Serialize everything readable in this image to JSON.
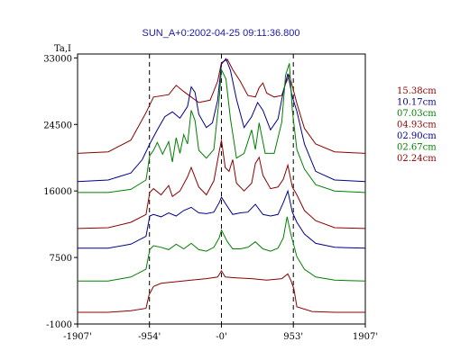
{
  "chart_data": {
    "type": "line",
    "title": "SUN_A+0:2002-04-25 09:11:36.800",
    "ylabel": "Ta,I",
    "xlabel": "",
    "x_ticks": [
      "-1907'",
      "-954'",
      "-0'",
      "953'",
      "1907'"
    ],
    "x_tick_values": [
      -1907,
      -954,
      0,
      953,
      1907
    ],
    "y_ticks": [
      "33000",
      "24500",
      "16000",
      "7500",
      "-1000"
    ],
    "y_tick_values": [
      33000,
      24500,
      16000,
      7500,
      -1000
    ],
    "xlim": [
      -1907,
      1907
    ],
    "ylim": [
      -1000,
      33500
    ],
    "reference_lines_x": [
      -954,
      0,
      953
    ],
    "legend_placement": "right",
    "series": [
      {
        "name": "15.38cm",
        "color": "#8b0000",
        "points": [
          [
            -1907,
            20800
          ],
          [
            -1500,
            21000
          ],
          [
            -1200,
            22500
          ],
          [
            -1000,
            26000
          ],
          [
            -900,
            28000
          ],
          [
            -700,
            28300
          ],
          [
            -600,
            29500
          ],
          [
            -500,
            28700
          ],
          [
            -400,
            28000
          ],
          [
            -300,
            27300
          ],
          [
            -150,
            27600
          ],
          [
            -50,
            30000
          ],
          [
            0,
            32400
          ],
          [
            80,
            32800
          ],
          [
            150,
            31500
          ],
          [
            250,
            30000
          ],
          [
            350,
            28200
          ],
          [
            450,
            28000
          ],
          [
            500,
            29200
          ],
          [
            550,
            29800
          ],
          [
            600,
            28500
          ],
          [
            700,
            28000
          ],
          [
            800,
            28200
          ],
          [
            850,
            29700
          ],
          [
            900,
            30800
          ],
          [
            950,
            29000
          ],
          [
            1000,
            27200
          ],
          [
            1100,
            24000
          ],
          [
            1250,
            22000
          ],
          [
            1500,
            21000
          ],
          [
            1907,
            20800
          ]
        ]
      },
      {
        "name": "10.17cm",
        "color": "#00008b",
        "points": [
          [
            -1907,
            17200
          ],
          [
            -1500,
            17400
          ],
          [
            -1200,
            18300
          ],
          [
            -1050,
            20000
          ],
          [
            -950,
            22000
          ],
          [
            -850,
            23800
          ],
          [
            -750,
            25500
          ],
          [
            -650,
            26100
          ],
          [
            -550,
            25300
          ],
          [
            -450,
            26800
          ],
          [
            -400,
            29300
          ],
          [
            -350,
            28600
          ],
          [
            -300,
            25800
          ],
          [
            -200,
            24100
          ],
          [
            -120,
            24700
          ],
          [
            -50,
            27600
          ],
          [
            0,
            32200
          ],
          [
            60,
            32900
          ],
          [
            120,
            31400
          ],
          [
            200,
            27700
          ],
          [
            300,
            24100
          ],
          [
            400,
            25500
          ],
          [
            480,
            27300
          ],
          [
            550,
            26300
          ],
          [
            650,
            23800
          ],
          [
            750,
            25200
          ],
          [
            820,
            28700
          ],
          [
            880,
            31000
          ],
          [
            940,
            28000
          ],
          [
            1000,
            26200
          ],
          [
            1100,
            22000
          ],
          [
            1250,
            18500
          ],
          [
            1500,
            17400
          ],
          [
            1907,
            17200
          ]
        ]
      },
      {
        "name": "07.03cm",
        "color": "#008000",
        "points": [
          [
            -1907,
            15800
          ],
          [
            -1500,
            15800
          ],
          [
            -1200,
            16200
          ],
          [
            -1000,
            17400
          ],
          [
            -950,
            20500
          ],
          [
            -900,
            21200
          ],
          [
            -850,
            22200
          ],
          [
            -780,
            20700
          ],
          [
            -700,
            22300
          ],
          [
            -650,
            19700
          ],
          [
            -600,
            22800
          ],
          [
            -550,
            20800
          ],
          [
            -500,
            23200
          ],
          [
            -450,
            22000
          ],
          [
            -400,
            26300
          ],
          [
            -350,
            25000
          ],
          [
            -300,
            21200
          ],
          [
            -200,
            20200
          ],
          [
            -100,
            21300
          ],
          [
            -30,
            27800
          ],
          [
            0,
            31500
          ],
          [
            60,
            30300
          ],
          [
            120,
            25200
          ],
          [
            200,
            20200
          ],
          [
            300,
            20800
          ],
          [
            400,
            23800
          ],
          [
            450,
            21300
          ],
          [
            500,
            24700
          ],
          [
            580,
            20800
          ],
          [
            700,
            20800
          ],
          [
            800,
            24800
          ],
          [
            850,
            30800
          ],
          [
            900,
            32300
          ],
          [
            940,
            26300
          ],
          [
            1000,
            21300
          ],
          [
            1100,
            18800
          ],
          [
            1250,
            16800
          ],
          [
            1500,
            16000
          ],
          [
            1907,
            15800
          ]
        ]
      },
      {
        "name": "04.93cm",
        "color": "#8b0000",
        "points": [
          [
            -1907,
            11200
          ],
          [
            -1500,
            11300
          ],
          [
            -1200,
            12000
          ],
          [
            -1000,
            13000
          ],
          [
            -950,
            15800
          ],
          [
            -900,
            16300
          ],
          [
            -800,
            15500
          ],
          [
            -700,
            16700
          ],
          [
            -650,
            15300
          ],
          [
            -550,
            16000
          ],
          [
            -450,
            17800
          ],
          [
            -400,
            19000
          ],
          [
            -300,
            16500
          ],
          [
            -200,
            15500
          ],
          [
            -100,
            17300
          ],
          [
            -30,
            21000
          ],
          [
            0,
            22500
          ],
          [
            50,
            19000
          ],
          [
            100,
            18500
          ],
          [
            150,
            20000
          ],
          [
            200,
            17000
          ],
          [
            300,
            16000
          ],
          [
            400,
            17000
          ],
          [
            450,
            19500
          ],
          [
            500,
            20300
          ],
          [
            550,
            18000
          ],
          [
            650,
            16300
          ],
          [
            750,
            16500
          ],
          [
            820,
            17500
          ],
          [
            880,
            19300
          ],
          [
            940,
            16500
          ],
          [
            1000,
            15500
          ],
          [
            1100,
            13500
          ],
          [
            1250,
            12200
          ],
          [
            1500,
            11300
          ],
          [
            1907,
            11200
          ]
        ]
      },
      {
        "name": "02.90cm",
        "color": "#00008b",
        "points": [
          [
            -1907,
            8700
          ],
          [
            -1500,
            8700
          ],
          [
            -1200,
            9200
          ],
          [
            -1000,
            10200
          ],
          [
            -950,
            12800
          ],
          [
            -900,
            13000
          ],
          [
            -800,
            12700
          ],
          [
            -700,
            13200
          ],
          [
            -600,
            12800
          ],
          [
            -500,
            13500
          ],
          [
            -400,
            13900
          ],
          [
            -300,
            13200
          ],
          [
            -200,
            13100
          ],
          [
            -100,
            13300
          ],
          [
            -30,
            14500
          ],
          [
            0,
            15200
          ],
          [
            80,
            14000
          ],
          [
            150,
            13000
          ],
          [
            250,
            13200
          ],
          [
            350,
            13300
          ],
          [
            450,
            14300
          ],
          [
            550,
            13000
          ],
          [
            650,
            12800
          ],
          [
            750,
            13000
          ],
          [
            820,
            14500
          ],
          [
            880,
            16000
          ],
          [
            940,
            13300
          ],
          [
            1000,
            12000
          ],
          [
            1100,
            10500
          ],
          [
            1250,
            9300
          ],
          [
            1500,
            8800
          ],
          [
            1907,
            8700
          ]
        ]
      },
      {
        "name": "02.67cm",
        "color": "#008000",
        "points": [
          [
            -1907,
            4500
          ],
          [
            -1500,
            4500
          ],
          [
            -1200,
            5000
          ],
          [
            -1000,
            6000
          ],
          [
            -950,
            8500
          ],
          [
            -900,
            9000
          ],
          [
            -800,
            8800
          ],
          [
            -700,
            8500
          ],
          [
            -600,
            9200
          ],
          [
            -500,
            8600
          ],
          [
            -400,
            9300
          ],
          [
            -300,
            8500
          ],
          [
            -200,
            8300
          ],
          [
            -100,
            8800
          ],
          [
            -30,
            10000
          ],
          [
            0,
            11000
          ],
          [
            80,
            9500
          ],
          [
            150,
            8600
          ],
          [
            250,
            8600
          ],
          [
            350,
            8800
          ],
          [
            450,
            9500
          ],
          [
            550,
            8600
          ],
          [
            650,
            8300
          ],
          [
            750,
            8700
          ],
          [
            820,
            10000
          ],
          [
            870,
            12700
          ],
          [
            920,
            10500
          ],
          [
            1000,
            7600
          ],
          [
            1100,
            6000
          ],
          [
            1250,
            5000
          ],
          [
            1500,
            4600
          ],
          [
            1907,
            4500
          ]
        ]
      },
      {
        "name": "02.24cm",
        "color": "#8b0000",
        "points": [
          [
            -1907,
            500
          ],
          [
            -1500,
            500
          ],
          [
            -1200,
            700
          ],
          [
            -1000,
            1000
          ],
          [
            -960,
            2700
          ],
          [
            -900,
            3800
          ],
          [
            -800,
            4200
          ],
          [
            -600,
            4400
          ],
          [
            -400,
            4600
          ],
          [
            -200,
            4800
          ],
          [
            -50,
            5000
          ],
          [
            0,
            5800
          ],
          [
            50,
            5000
          ],
          [
            200,
            4900
          ],
          [
            400,
            4800
          ],
          [
            600,
            4600
          ],
          [
            800,
            4800
          ],
          [
            880,
            5400
          ],
          [
            920,
            4600
          ],
          [
            960,
            3500
          ],
          [
            1000,
            1200
          ],
          [
            1200,
            600
          ],
          [
            1500,
            500
          ],
          [
            1907,
            500
          ]
        ]
      }
    ]
  }
}
